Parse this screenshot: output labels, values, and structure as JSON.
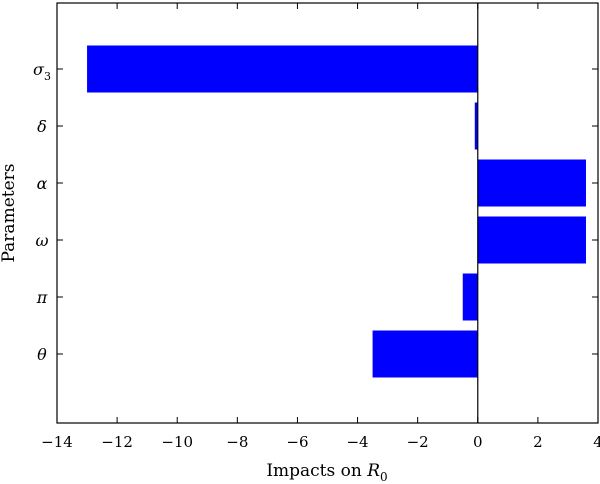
{
  "chart_data": {
    "type": "bar",
    "orientation": "horizontal",
    "categories": [
      {
        "base": "σ",
        "sub": "3"
      },
      {
        "base": "δ",
        "sub": ""
      },
      {
        "base": "α",
        "sub": ""
      },
      {
        "base": "ω",
        "sub": ""
      },
      {
        "base": "π",
        "sub": ""
      },
      {
        "base": "θ",
        "sub": ""
      }
    ],
    "values": [
      -13.0,
      -0.1,
      3.6,
      3.6,
      -0.5,
      -3.5
    ],
    "xlabel": {
      "text": "Impacts on ",
      "var": "R",
      "sub": "0"
    },
    "ylabel": "Parameters",
    "xlim": [
      -14,
      4
    ],
    "xticks": [
      -14,
      -12,
      -10,
      -8,
      -6,
      -4,
      -2,
      0,
      2,
      4
    ],
    "tick_labels": [
      "−14",
      "−12",
      "−10",
      "−8",
      "−6",
      "−4",
      "−2",
      "0",
      "2",
      "4"
    ],
    "grid": false,
    "legend": "none",
    "bar_color": "#0000ff",
    "zero_line": true
  }
}
